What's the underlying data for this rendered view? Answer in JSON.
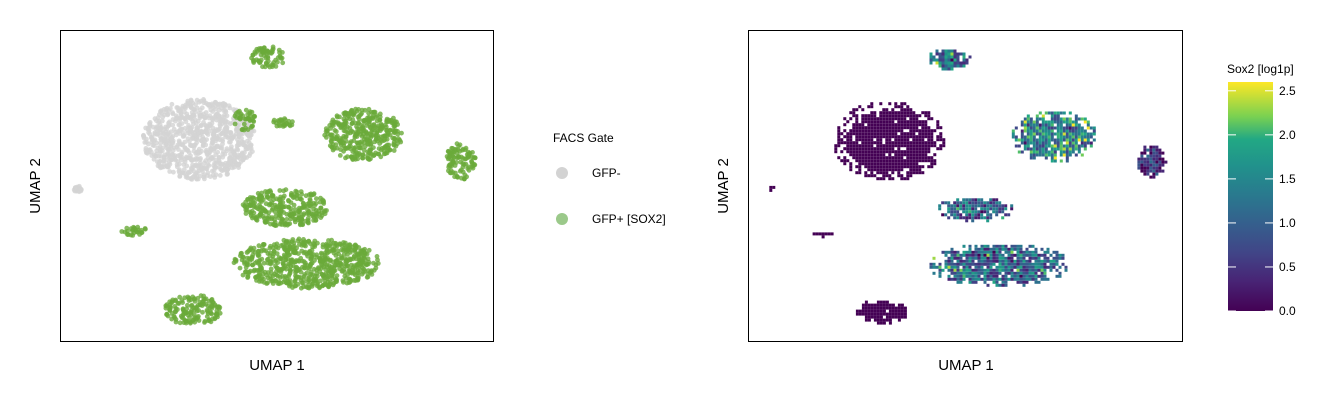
{
  "chart_data": [
    {
      "type": "scatter",
      "panel": "left",
      "xlabel": "UMAP 1",
      "ylabel": "UMAP 2",
      "legend": {
        "title": "FACS Gate",
        "placement": "right",
        "entries": [
          {
            "name": "GFP-",
            "color": "#d3d3d3"
          },
          {
            "name": "GFP+ [SOX2]",
            "color": "#6aaa3a"
          }
        ]
      },
      "xlim": [
        0,
        100
      ],
      "ylim": [
        0,
        100
      ],
      "clusters": [
        {
          "id": "top",
          "group": "GFP+ [SOX2]",
          "x": [
            44,
            52
          ],
          "y": [
            88,
            95
          ]
        },
        {
          "id": "midsmall",
          "group": "GFP+ [SOX2]",
          "x": [
            49,
            54
          ],
          "y": [
            69,
            72
          ]
        },
        {
          "id": "center-right",
          "group": "GFP+ [SOX2]",
          "x": [
            61,
            79
          ],
          "y": [
            58,
            75
          ]
        },
        {
          "id": "far-right",
          "group": "GFP+ [SOX2]",
          "x": [
            89,
            96
          ],
          "y": [
            52,
            64
          ]
        },
        {
          "id": "main",
          "group": "GFP-",
          "x": [
            19,
            45
          ],
          "y": [
            52,
            78
          ]
        },
        {
          "id": "main-edge",
          "group": "GFP+ [SOX2]",
          "x": [
            40,
            45
          ],
          "y": [
            68,
            75
          ]
        },
        {
          "id": "center",
          "group": "GFP+ [SOX2]",
          "x": [
            42,
            62
          ],
          "y": [
            37,
            49
          ]
        },
        {
          "id": "left-small",
          "group": "GFP+ [SOX2]",
          "x": [
            14,
            20
          ],
          "y": [
            34,
            37
          ]
        },
        {
          "id": "lower",
          "group": "GFP+ [SOX2]",
          "x": [
            40,
            74
          ],
          "y": [
            17,
            33
          ]
        },
        {
          "id": "bottom-left",
          "group": "GFP+ [SOX2]",
          "x": [
            24,
            37
          ],
          "y": [
            5,
            15
          ]
        },
        {
          "id": "tiny-left",
          "group": "GFP-",
          "x": [
            3,
            5
          ],
          "y": [
            48,
            50
          ]
        }
      ]
    },
    {
      "type": "heatmap",
      "panel": "right",
      "xlabel": "UMAP 1",
      "ylabel": "UMAP 2",
      "colorbar": {
        "title": "Sox2 [log1p]",
        "ticks": [
          "0.0",
          "0.5",
          "1.0",
          "1.5",
          "2.0",
          "2.5"
        ],
        "tick_values": [
          0,
          0.5,
          1.0,
          1.5,
          2.0,
          2.5
        ],
        "range": [
          0,
          2.6
        ],
        "colormap": "viridis"
      },
      "xlim": [
        0,
        100
      ],
      "ylim": [
        0,
        100
      ],
      "regions": [
        {
          "id": "top",
          "value": 1.2,
          "x": [
            41,
            51
          ],
          "y": [
            88,
            95
          ]
        },
        {
          "id": "center-right",
          "value": 1.4,
          "x": [
            60,
            80
          ],
          "y": [
            58,
            75
          ]
        },
        {
          "id": "far-right",
          "value": 0.4,
          "x": [
            89,
            96
          ],
          "y": [
            52,
            64
          ]
        },
        {
          "id": "main",
          "value": 0.0,
          "x": [
            19,
            45
          ],
          "y": [
            52,
            78
          ]
        },
        {
          "id": "tiny-left",
          "value": 0.0,
          "x": [
            4,
            6
          ],
          "y": [
            49,
            51
          ]
        },
        {
          "id": "center",
          "value": 1.0,
          "x": [
            43,
            61
          ],
          "y": [
            39,
            47
          ]
        },
        {
          "id": "left-small",
          "value": 0.0,
          "x": [
            14,
            20
          ],
          "y": [
            34,
            36
          ]
        },
        {
          "id": "lower",
          "value": 1.1,
          "x": [
            41,
            74
          ],
          "y": [
            18,
            32
          ]
        },
        {
          "id": "bottom-left",
          "value": 0.0,
          "x": [
            24,
            37
          ],
          "y": [
            6,
            14
          ]
        }
      ]
    }
  ]
}
